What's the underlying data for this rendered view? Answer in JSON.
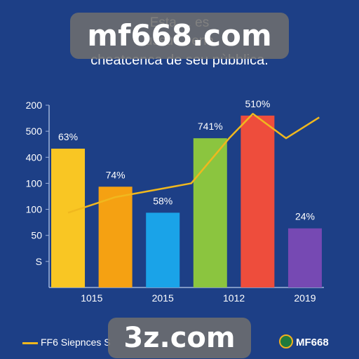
{
  "title_lines": [
    "Esta ... es",
    "ussu ... ena",
    "cheatcenca de seu pùbblica."
  ],
  "watermarks": {
    "top": "mf668.com",
    "bottom": "3z.com"
  },
  "legend": {
    "label": "FF6 Siepnces S",
    "brand": "MF668"
  },
  "colors": {
    "background": "#1d3f86",
    "line": "#f0b81e"
  },
  "chart_data": {
    "type": "bar",
    "y_tick_labels": [
      "S",
      "50",
      "100",
      "100",
      "400",
      "500",
      "200"
    ],
    "x_tick_labels": [
      "1015",
      "2015",
      "1012",
      "2019"
    ],
    "bars": [
      {
        "value": 5.33,
        "label": "63%",
        "color": "#f9c623"
      },
      {
        "value": 3.87,
        "label": "74%",
        "color": "#f5a112"
      },
      {
        "value": 2.87,
        "label": "58%",
        "color": "#1aa3e8"
      },
      {
        "value": 5.73,
        "label": "741%",
        "color": "#8bc53f"
      },
      {
        "value": 6.6,
        "label": "510%",
        "color": "#ee4d3c"
      },
      {
        "value": 2.27,
        "label": "24%",
        "color": "#7649b3"
      }
    ],
    "line": [
      {
        "x": 0.0,
        "y": 2.87
      },
      {
        "x": 1.0,
        "y": 3.47
      },
      {
        "x": 2.0,
        "y": 3.8
      },
      {
        "x": 2.6,
        "y": 4.0
      },
      {
        "x": 3.4,
        "y": 5.73
      },
      {
        "x": 3.9,
        "y": 6.67
      },
      {
        "x": 4.6,
        "y": 5.73
      },
      {
        "x": 5.3,
        "y": 6.53
      }
    ],
    "ylim": [
      0,
      7
    ],
    "x_range": [
      -0.4,
      5.4
    ]
  }
}
